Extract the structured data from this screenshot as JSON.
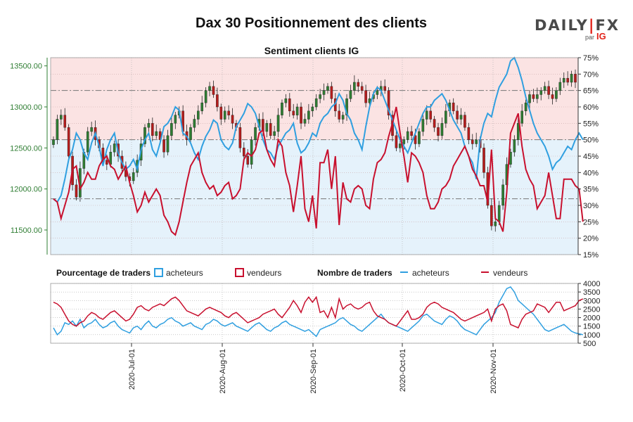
{
  "header": {
    "title": "Dax 30 Positionnement des clients",
    "logo": {
      "brand_left": "DAILY",
      "brand_sep": "|",
      "brand_right": "FX",
      "par": "par",
      "ig": "IG"
    }
  },
  "colors": {
    "buyers": "#2f9fe0",
    "sellers": "#c8102e",
    "candle_up": "#2e7d32",
    "candle_down": "#b71c1c",
    "bg_top": "#fbe3e3",
    "bg_bottom": "#e5f2fb",
    "price_axis": "#2e7d32"
  },
  "chart_data": [
    {
      "type": "candlestick-line",
      "title": "Sentiment clients IG",
      "y_left": {
        "ylim": [
          11200,
          13600
        ],
        "ticks": [
          "11500.00",
          "12000.00",
          "12500.00",
          "13000.00",
          "13500.00"
        ]
      },
      "y_right": {
        "ylim": [
          15,
          75
        ],
        "ticks": [
          "15%",
          "20%",
          "25%",
          "30%",
          "35%",
          "40%",
          "45%",
          "50%",
          "55%",
          "60%",
          "65%",
          "70%",
          "75%"
        ]
      },
      "x_ticks": [
        "2020-Jul-01",
        "2020-Aug-01",
        "2020-Sep-01",
        "2020-Oct-01",
        "2020-Nov-01"
      ],
      "grid": true,
      "price_close": [
        12600,
        12850,
        12900,
        12750,
        12400,
        12050,
        11900,
        12250,
        12450,
        12700,
        12750,
        12600,
        12500,
        12350,
        12300,
        12450,
        12550,
        12400,
        12250,
        12150,
        12100,
        12200,
        12350,
        12550,
        12750,
        12800,
        12650,
        12700,
        12600,
        12450,
        12650,
        12800,
        12900,
        12950,
        12700,
        12600,
        12750,
        12850,
        12950,
        13050,
        13200,
        13250,
        13150,
        13000,
        12850,
        12950,
        12900,
        12800,
        12750,
        12500,
        12400,
        12300,
        12600,
        12750,
        12850,
        12700,
        12800,
        12650,
        12700,
        12900,
        13050,
        13100,
        12950,
        12900,
        13000,
        12800,
        12850,
        12950,
        13000,
        13100,
        13150,
        13200,
        13250,
        13100,
        12950,
        12850,
        12900,
        13100,
        13200,
        13300,
        13250,
        13200,
        13050,
        13100,
        13150,
        13200,
        13250,
        13200,
        12900,
        12650,
        12500,
        12550,
        12600,
        12700,
        12650,
        12550,
        12700,
        12850,
        12950,
        12850,
        12750,
        12650,
        12800,
        12950,
        13050,
        12950,
        12850,
        12900,
        12750,
        12600,
        12550,
        12600,
        12500,
        12200,
        11800,
        11550,
        11600,
        11800,
        12050,
        12300,
        12450,
        12600,
        12800,
        12950,
        13050,
        13150,
        13100,
        13150,
        13200,
        13250,
        13150,
        13100,
        13200,
        13300,
        13350,
        13300,
        13400,
        13300
      ],
      "series": [
        {
          "name": "acheteurs",
          "values": [
            32,
            31,
            33,
            38,
            44,
            47,
            52,
            50,
            46,
            44,
            49,
            52,
            48,
            42,
            47,
            50,
            52,
            46,
            43,
            41,
            42,
            44,
            41,
            47,
            50,
            52,
            47,
            45,
            49,
            54,
            55,
            57,
            60,
            59,
            52,
            51,
            49,
            46,
            44,
            48,
            51,
            53,
            56,
            55,
            50,
            48,
            47,
            49,
            54,
            56,
            58,
            61,
            60,
            58,
            54,
            50,
            47,
            46,
            44,
            48,
            50,
            52,
            53,
            55,
            49,
            46,
            47,
            49,
            52,
            51,
            55,
            57,
            58,
            60,
            61,
            64,
            62,
            58,
            56,
            52,
            50,
            47,
            54,
            60,
            64,
            66,
            65,
            62,
            59,
            56,
            53,
            50,
            48,
            46,
            49,
            52,
            55,
            58,
            60,
            60,
            62,
            63,
            64,
            62,
            59,
            56,
            54,
            52,
            48,
            45,
            43,
            38,
            50,
            55,
            58,
            57,
            62,
            66,
            68,
            70,
            74,
            75,
            72,
            68,
            63,
            59,
            55,
            52,
            50,
            48,
            45,
            41,
            43,
            44,
            46,
            48,
            47,
            50,
            52,
            50
          ]
        },
        {
          "name": "vendeurs",
          "values": [
            32,
            31,
            26,
            30,
            34,
            41,
            42,
            35,
            37,
            40,
            38,
            38,
            42,
            44,
            45,
            42,
            41,
            38,
            40,
            42,
            37,
            33,
            28,
            30,
            34,
            31,
            33,
            35,
            33,
            27,
            25,
            22,
            21,
            25,
            31,
            37,
            42,
            44,
            46,
            40,
            37,
            35,
            36,
            33,
            34,
            36,
            37,
            32,
            33,
            35,
            44,
            46,
            45,
            47,
            52,
            53,
            47,
            44,
            42,
            50,
            48,
            40,
            36,
            28,
            36,
            45,
            29,
            25,
            33,
            23,
            43,
            43,
            47,
            35,
            45,
            24,
            37,
            32,
            31,
            35,
            36,
            35,
            30,
            29,
            38,
            43,
            44,
            46,
            51,
            55,
            60,
            52,
            45,
            37,
            46,
            45,
            43,
            40,
            33,
            29,
            29,
            31,
            35,
            36,
            38,
            42,
            44,
            46,
            48,
            45,
            41,
            39,
            36,
            36,
            31,
            47,
            26,
            25,
            22,
            34,
            52,
            55,
            58,
            48,
            41,
            38,
            36,
            29,
            31,
            33,
            40,
            33,
            26,
            26,
            38,
            38,
            38,
            36,
            35,
            25
          ]
        }
      ]
    },
    {
      "type": "line",
      "y": {
        "ylim": [
          500,
          4000
        ],
        "ticks": [
          "500",
          "1000",
          "1500",
          "2000",
          "2500",
          "3000",
          "3500",
          "4000"
        ]
      },
      "grid": true,
      "series": [
        {
          "name": "acheteurs",
          "values": [
            1400,
            1000,
            1200,
            1700,
            1600,
            1800,
            1500,
            1900,
            1400,
            1600,
            1700,
            1900,
            1600,
            1400,
            1500,
            1700,
            1800,
            1500,
            1300,
            1200,
            1100,
            1400,
            1500,
            1300,
            1600,
            1800,
            1500,
            1400,
            1600,
            1700,
            1900,
            2000,
            1800,
            1700,
            1500,
            1600,
            1700,
            1500,
            1400,
            1300,
            1600,
            1700,
            1900,
            1800,
            1600,
            1500,
            1600,
            1700,
            1500,
            1400,
            1300,
            1200,
            1400,
            1600,
            1700,
            1500,
            1300,
            1200,
            1400,
            1500,
            1700,
            1800,
            1600,
            1500,
            1400,
            1300,
            1200,
            1300,
            1100,
            900,
            1300,
            1400,
            1500,
            1600,
            1700,
            1900,
            2000,
            1800,
            1600,
            1500,
            1300,
            1200,
            1400,
            1600,
            1800,
            2000,
            2200,
            1900,
            1700,
            1600,
            1500,
            1400,
            1300,
            1200,
            1400,
            1600,
            1800,
            2100,
            2200,
            2000,
            1800,
            1700,
            1600,
            1900,
            2100,
            2000,
            1800,
            1500,
            1300,
            1200,
            1100,
            1000,
            1300,
            1600,
            1800,
            2000,
            2300,
            2900,
            3300,
            3700,
            3800,
            3500,
            3000,
            2800,
            2600,
            2400,
            2200,
            1900,
            1600,
            1300,
            1200,
            1300,
            1400,
            1500,
            1600,
            1400,
            1200,
            1100,
            1050,
            1000
          ]
        },
        {
          "name": "vendeurs",
          "values": [
            2900,
            2800,
            2600,
            2200,
            1800,
            1600,
            1500,
            1700,
            1800,
            2100,
            2300,
            2200,
            2000,
            1900,
            2100,
            2300,
            2400,
            2200,
            2000,
            1800,
            1900,
            2200,
            2600,
            2700,
            2500,
            2400,
            2600,
            2700,
            2800,
            2700,
            2900,
            3100,
            3200,
            3000,
            2700,
            2400,
            2300,
            2200,
            2100,
            2300,
            2500,
            2600,
            2500,
            2400,
            2300,
            2100,
            2000,
            2200,
            2300,
            2100,
            1900,
            1700,
            1800,
            1900,
            2000,
            2200,
            2300,
            2400,
            2500,
            2200,
            2000,
            2300,
            2600,
            3000,
            2700,
            2300,
            2900,
            3200,
            2900,
            3200,
            2300,
            2400,
            2000,
            2600,
            2000,
            3100,
            2500,
            2700,
            2800,
            2600,
            2500,
            2600,
            2800,
            2900,
            2400,
            2100,
            2000,
            1900,
            1700,
            1600,
            1500,
            1800,
            2100,
            2400,
            1900,
            1900,
            2000,
            2200,
            2600,
            2800,
            2900,
            2800,
            2600,
            2500,
            2400,
            2300,
            2100,
            1900,
            1800,
            1900,
            2000,
            2100,
            2200,
            2300,
            2500,
            1800,
            2500,
            2700,
            2800,
            2400,
            1600,
            1500,
            1400,
            1900,
            2200,
            2300,
            2400,
            2800,
            2700,
            2600,
            2300,
            2600,
            2900,
            2900,
            2400,
            2500,
            2600,
            2700,
            3000,
            3100
          ]
        }
      ]
    }
  ],
  "legend": {
    "pct_title": "Pourcentage de traders",
    "pct_buyers": "acheteurs",
    "pct_sellers": "vendeurs",
    "num_title": "Nombre de traders",
    "num_buyers": "acheteurs",
    "num_sellers": "vendeurs"
  }
}
